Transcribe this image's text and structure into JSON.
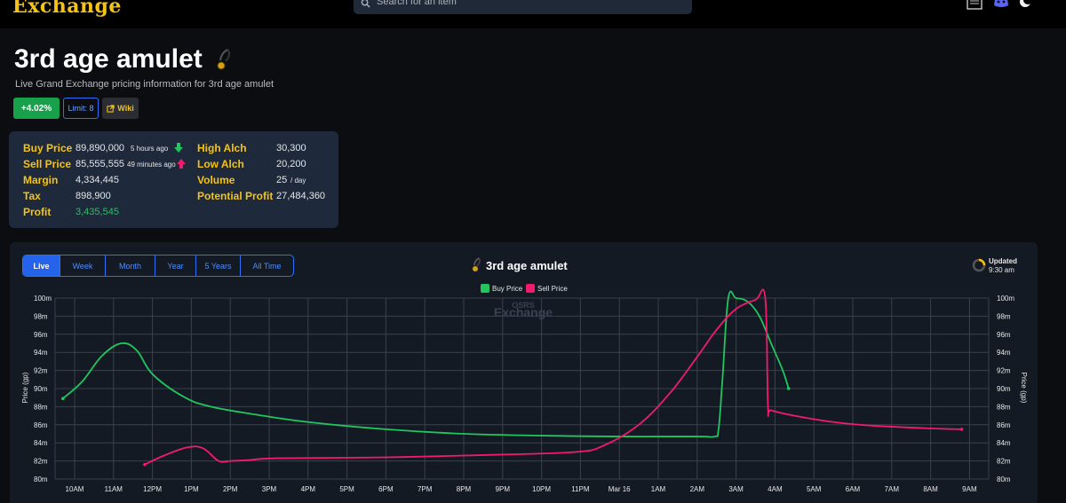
{
  "header": {
    "brand": "Exchange",
    "search_placeholder": "Search for an item"
  },
  "item": {
    "name": "3rd age amulet",
    "subtitle": "Live Grand Exchange pricing information for 3rd age amulet",
    "change": "+4.02%",
    "limit": "Limit: 8",
    "wiki": "Wiki"
  },
  "stats": {
    "buy_price_label": "Buy Price",
    "buy_price": "89,890,000",
    "buy_ago": "5 hours ago",
    "sell_price_label": "Sell Price",
    "sell_price": "85,555,555",
    "sell_ago": "49 minutes ago",
    "margin_label": "Margin",
    "margin": "4,334,445",
    "tax_label": "Tax",
    "tax": "898,900",
    "profit_label": "Profit",
    "profit": "3,435,545",
    "high_alch_label": "High Alch",
    "high_alch": "30,300",
    "low_alch_label": "Low Alch",
    "low_alch": "20,200",
    "volume_label": "Volume",
    "volume": "25",
    "volume_unit": "/ day",
    "potential_profit_label": "Potential Profit",
    "potential_profit": "27,484,360"
  },
  "chart_controls": {
    "tabs": [
      "Live",
      "Week",
      "Month",
      "Year",
      "5 Years",
      "All Time"
    ],
    "active_tab": "Live",
    "updated_label": "Updated",
    "updated_time": "9:30 am",
    "watermark_top": "OSRS",
    "watermark_bottom": "Exchange"
  },
  "colors": {
    "buy": "#22c55e",
    "sell": "#f01b6c",
    "accent": "#2f6ff5",
    "gold": "#f5c316"
  },
  "chart_data": {
    "type": "line",
    "title": "3rd age amulet",
    "ylabel": "Price (gp)",
    "legend_position": "top",
    "grid": true,
    "ylim": [
      80,
      100
    ],
    "y_unit": "m",
    "yticks": [
      "80m",
      "82m",
      "84m",
      "86m",
      "88m",
      "90m",
      "92m",
      "94m",
      "96m",
      "98m",
      "100m"
    ],
    "xticks": [
      "10AM",
      "11AM",
      "12PM",
      "1PM",
      "2PM",
      "3PM",
      "4PM",
      "5PM",
      "6PM",
      "7PM",
      "8PM",
      "9PM",
      "10PM",
      "11PM",
      "Mar 16",
      "1AM",
      "2AM",
      "3AM",
      "4AM",
      "5AM",
      "6AM",
      "7AM",
      "8AM",
      "9AM"
    ],
    "x_unit": "hours (0 = 10AM)",
    "series": [
      {
        "name": "Buy Price",
        "points": [
          [
            -0.3,
            88.9
          ],
          [
            0.2,
            90.8
          ],
          [
            0.7,
            93.6
          ],
          [
            1.2,
            95.0
          ],
          [
            1.6,
            94.2
          ],
          [
            2.0,
            91.6
          ],
          [
            2.8,
            89.1
          ],
          [
            3.5,
            88.0
          ],
          [
            4.7,
            87.1
          ],
          [
            6.0,
            86.3
          ],
          [
            8.0,
            85.5
          ],
          [
            10.0,
            85.0
          ],
          [
            12.0,
            84.8
          ],
          [
            14.0,
            84.7
          ],
          [
            16.0,
            84.7
          ],
          [
            16.45,
            84.7
          ],
          [
            16.55,
            85.5
          ],
          [
            16.65,
            91.0
          ],
          [
            16.8,
            100.0
          ],
          [
            17.0,
            100.0
          ],
          [
            17.3,
            99.6
          ],
          [
            17.6,
            98.0
          ],
          [
            17.9,
            95.0
          ],
          [
            18.2,
            92.0
          ],
          [
            18.35,
            90.0
          ]
        ]
      },
      {
        "name": "Sell Price",
        "points": [
          [
            1.8,
            81.6
          ],
          [
            2.3,
            82.6
          ],
          [
            2.9,
            83.5
          ],
          [
            3.3,
            83.4
          ],
          [
            3.7,
            82.0
          ],
          [
            4.0,
            82.0
          ],
          [
            4.5,
            82.1
          ],
          [
            5.2,
            82.3
          ],
          [
            8.0,
            82.4
          ],
          [
            11.0,
            82.7
          ],
          [
            12.9,
            83.0
          ],
          [
            13.6,
            83.7
          ],
          [
            14.5,
            86.0
          ],
          [
            15.3,
            89.5
          ],
          [
            16.0,
            93.5
          ],
          [
            16.5,
            96.5
          ],
          [
            17.0,
            98.8
          ],
          [
            17.5,
            99.8
          ],
          [
            17.75,
            100.0
          ],
          [
            17.82,
            88.0
          ],
          [
            17.9,
            87.6
          ],
          [
            18.5,
            87.0
          ],
          [
            19.5,
            86.3
          ],
          [
            20.5,
            85.9
          ],
          [
            22.0,
            85.6
          ],
          [
            22.8,
            85.5
          ]
        ]
      }
    ]
  }
}
